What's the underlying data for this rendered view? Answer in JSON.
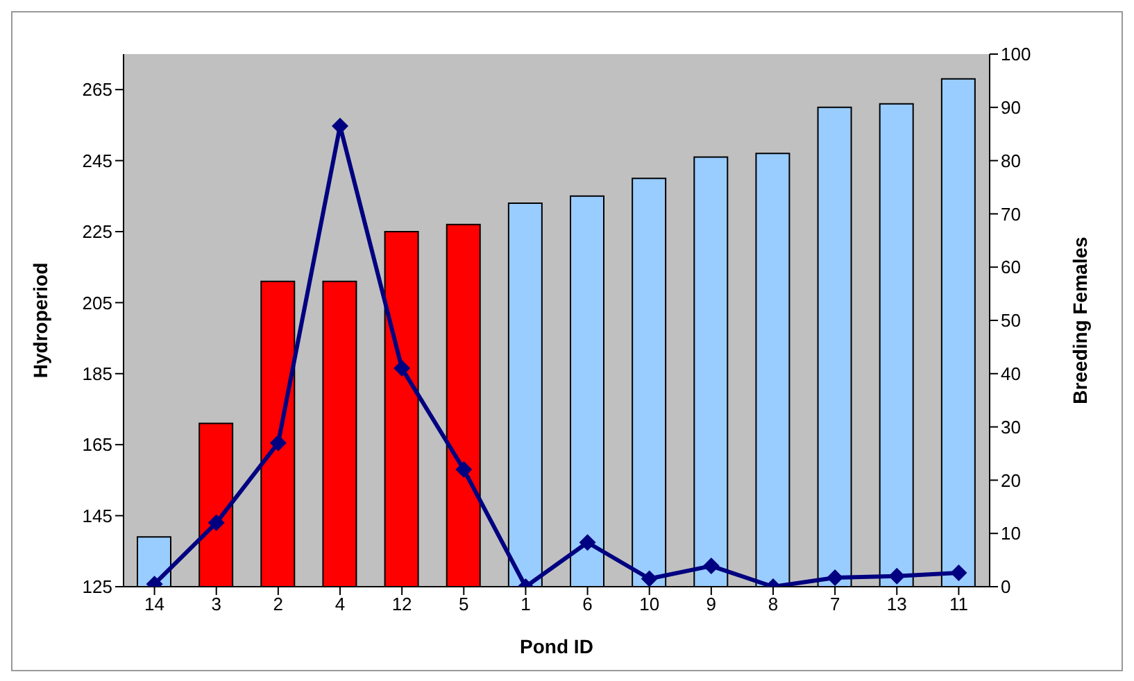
{
  "chart_data": {
    "type": "bar",
    "xlabel": "Pond ID",
    "ylabel": "Hydroperiod",
    "y2label": "Breeding Females",
    "categories": [
      "14",
      "3",
      "2",
      "4",
      "12",
      "5",
      "1",
      "6",
      "10",
      "9",
      "8",
      "7",
      "13",
      "11"
    ],
    "series": [
      {
        "colors": [
          "#99ccff",
          "#ff0000",
          "#ff0000",
          "#ff0000",
          "#ff0000",
          "#ff0000",
          "#99ccff",
          "#99ccff",
          "#99ccff",
          "#99ccff",
          "#99ccff",
          "#99ccff",
          "#99ccff",
          "#99ccff"
        ],
        "values": [
          139,
          171,
          211,
          211,
          225,
          227,
          233,
          235,
          240,
          246,
          247,
          260,
          261,
          268
        ]
      },
      {
        "type": "line",
        "axis": "y2",
        "color": "#000080",
        "marker": "diamond",
        "line_style": "solid",
        "values": [
          0.5,
          12,
          27,
          86.5,
          41,
          22,
          0,
          8.3,
          1.5,
          3.9,
          0,
          1.7,
          2,
          2.6
        ]
      }
    ],
    "ylim": [
      125,
      275
    ],
    "yticks": [
      125,
      145,
      165,
      185,
      205,
      225,
      245,
      265
    ],
    "y2lim": [
      0,
      100
    ],
    "y2ticks": [
      0,
      10,
      20,
      30,
      40,
      50,
      60,
      70,
      80,
      90,
      100
    ]
  }
}
